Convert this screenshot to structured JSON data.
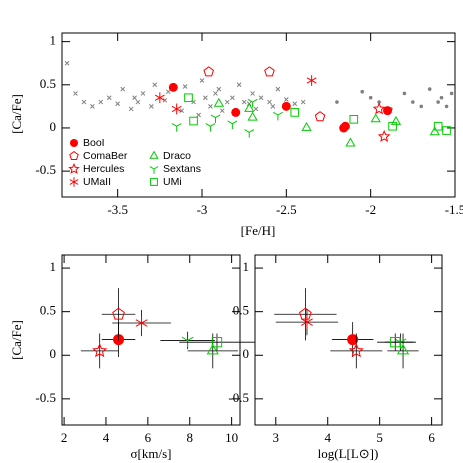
{
  "chart_data": [
    {
      "type": "scatter",
      "xlabel": "[Fe/H]",
      "ylabel": "[Ca/Fe]",
      "xlim": [
        -3.83,
        -1.5
      ],
      "ylim": [
        -0.8,
        1.1
      ],
      "xticks": [
        -3.5,
        -3,
        -2.5,
        -2,
        -1.5
      ],
      "yticks": [
        -0.5,
        0,
        0.5,
        1
      ],
      "legend": "lower left",
      "series": [
        {
          "marker": "cross",
          "color": "#808080",
          "x": [
            -3.8,
            -3.75,
            -3.7,
            -3.65,
            -3.6,
            -3.55,
            -3.5,
            -3.47,
            -3.42,
            -3.4,
            -3.38,
            -3.35,
            -3.3,
            -3.28,
            -3.22,
            -3.2,
            -3.12,
            -3.1,
            -3.05,
            -3.02,
            -3.0,
            -2.98,
            -2.95,
            -2.92,
            -2.9,
            -2.88,
            -2.85,
            -2.82,
            -2.78,
            -2.75,
            -2.72,
            -2.7,
            -2.68,
            -2.65,
            -2.6,
            -2.58,
            -2.55,
            -2.5,
            -2.45,
            -2.4
          ],
          "y": [
            0.75,
            0.4,
            0.3,
            0.25,
            0.3,
            0.35,
            0.28,
            0.45,
            0.22,
            0.35,
            0.3,
            0.4,
            0.25,
            0.5,
            0.32,
            0.42,
            0.2,
            0.48,
            0.3,
            0.15,
            0.55,
            0.35,
            0.25,
            0.4,
            0.45,
            0.2,
            0.3,
            0.35,
            0.5,
            0.3,
            0.28,
            0.4,
            0.22,
            0.35,
            0.3,
            0.25,
            0.45,
            0.33,
            0.28,
            0.3
          ]
        },
        {
          "marker": "dot",
          "color": "#808080",
          "x": [
            -2.2,
            -2.05,
            -2.0,
            -1.95,
            -1.88,
            -1.8,
            -1.75,
            -1.7,
            -1.65,
            -1.6,
            -1.58,
            -1.55,
            -1.52
          ],
          "y": [
            0.3,
            0.42,
            0.35,
            0.3,
            0.22,
            0.4,
            0.3,
            0.25,
            0.45,
            0.3,
            0.35,
            0.25,
            0.4
          ]
        },
        {
          "name": "BooI",
          "marker": "circle",
          "color": "#ff0000",
          "x": [
            -3.17,
            -2.8,
            -2.5,
            -2.16,
            -2.15,
            -1.9
          ],
          "y": [
            0.47,
            0.18,
            0.25,
            0.0,
            0.02,
            0.2
          ]
        },
        {
          "name": "ComaBer",
          "marker": "pentagon",
          "color": "#ff0000",
          "x": [
            -2.96,
            -2.6,
            -2.3
          ],
          "y": [
            0.65,
            0.65,
            0.13
          ]
        },
        {
          "name": "Hercules",
          "marker": "star",
          "color": "#ff0000",
          "x": [
            -1.95,
            -1.92
          ],
          "y": [
            0.22,
            -0.1
          ]
        },
        {
          "name": "UMaII",
          "marker": "asterisk",
          "color": "#ff0000",
          "x": [
            -3.25,
            -3.15,
            -2.35
          ],
          "y": [
            0.35,
            0.22,
            0.55
          ]
        },
        {
          "name": "Draco",
          "marker": "triangle",
          "color": "#00cc00",
          "x": [
            -2.9,
            -2.72,
            -2.7,
            -2.38,
            -2.12,
            -1.97,
            -1.85,
            -1.62
          ],
          "y": [
            0.28,
            0.22,
            0.12,
            0.0,
            -0.18,
            0.1,
            0.07,
            -0.05
          ]
        },
        {
          "name": "Sextans",
          "marker": "tri",
          "color": "#00cc00",
          "x": [
            -3.15,
            -2.95,
            -2.92,
            -2.82,
            -2.72,
            -2.7,
            -2.55
          ],
          "y": [
            0.02,
            0.02,
            0.12,
            0.05,
            -0.05,
            0.3,
            0.15
          ]
        },
        {
          "name": "UMi",
          "marker": "square",
          "color": "#00cc00",
          "x": [
            -3.08,
            -3.05,
            -2.45,
            -2.1,
            -1.87,
            -1.6,
            -1.55
          ],
          "y": [
            0.35,
            0.08,
            0.18,
            0.1,
            0.02,
            0.02,
            -0.03
          ]
        }
      ]
    },
    {
      "type": "scatter",
      "xlabel": "σ[km/s]",
      "ylabel": "[Ca/Fe]",
      "xlim": [
        1.9,
        10.4
      ],
      "ylim": [
        -0.8,
        1.15
      ],
      "xticks": [
        2,
        4,
        6,
        8,
        10
      ],
      "yticks": [
        -0.5,
        0,
        0.5,
        1
      ],
      "series": [
        {
          "marker": "circle",
          "color": "#ff0000",
          "x": [
            4.6
          ],
          "y": [
            0.18
          ],
          "xerr": [
            0.8
          ],
          "yerr": [
            0.2
          ]
        },
        {
          "marker": "pentagon",
          "color": "#ff0000",
          "x": [
            4.6
          ],
          "y": [
            0.47
          ],
          "xerr": [
            0.8
          ],
          "yerr": [
            0.3
          ]
        },
        {
          "marker": "star",
          "color": "#ff0000",
          "x": [
            3.7
          ],
          "y": [
            0.05
          ],
          "xerr": [
            0.9
          ],
          "yerr": [
            0.2
          ]
        },
        {
          "marker": "asterisk",
          "color": "#ff0000",
          "x": [
            5.7
          ],
          "y": [
            0.37
          ],
          "xerr": [
            1.4
          ],
          "yerr": [
            0.15
          ]
        },
        {
          "marker": "triangle",
          "color": "#00cc00",
          "x": [
            9.1
          ],
          "y": [
            0.05
          ],
          "xerr": [
            1.2
          ],
          "yerr": [
            0.2
          ]
        },
        {
          "marker": "tri",
          "color": "#00cc00",
          "x": [
            7.9
          ],
          "y": [
            0.17
          ],
          "xerr": [
            1.3
          ],
          "yerr": [
            0.1
          ]
        },
        {
          "marker": "square",
          "color": "#00cc00",
          "x": [
            9.3
          ],
          "y": [
            0.15
          ],
          "xerr": [
            1.8
          ],
          "yerr": [
            0.1
          ]
        }
      ]
    },
    {
      "type": "scatter",
      "xlabel": "log(L[L⊙])",
      "xlim": [
        2.6,
        6.2
      ],
      "ylim": [
        -0.8,
        1.15
      ],
      "xticks": [
        3,
        4,
        5,
        6
      ],
      "yticks": [
        -0.5,
        0,
        0.5,
        1
      ],
      "series": [
        {
          "marker": "circle",
          "color": "#ff0000",
          "x": [
            4.48
          ],
          "y": [
            0.18
          ],
          "xerr": [
            0.4
          ],
          "yerr": [
            0.2
          ]
        },
        {
          "marker": "pentagon",
          "color": "#ff0000",
          "x": [
            3.57
          ],
          "y": [
            0.47
          ],
          "xerr": [
            0.6
          ],
          "yerr": [
            0.3
          ]
        },
        {
          "marker": "star",
          "color": "#ff0000",
          "x": [
            4.55
          ],
          "y": [
            0.05
          ],
          "xerr": [
            0.5
          ],
          "yerr": [
            0.2
          ]
        },
        {
          "marker": "asterisk",
          "color": "#ff0000",
          "x": [
            3.6
          ],
          "y": [
            0.38
          ],
          "xerr": [
            0.6
          ],
          "yerr": [
            0.15
          ]
        },
        {
          "marker": "triangle",
          "color": "#00cc00",
          "x": [
            5.45
          ],
          "y": [
            0.05
          ],
          "xerr": [
            0.3
          ],
          "yerr": [
            0.2
          ]
        },
        {
          "marker": "tri",
          "color": "#00cc00",
          "x": [
            5.4
          ],
          "y": [
            0.15
          ],
          "xerr": [
            0.3
          ],
          "yerr": [
            0.1
          ]
        },
        {
          "marker": "square",
          "color": "#00cc00",
          "x": [
            5.3
          ],
          "y": [
            0.15
          ],
          "xerr": [
            0.35
          ],
          "yerr": [
            0.1
          ]
        }
      ]
    }
  ]
}
